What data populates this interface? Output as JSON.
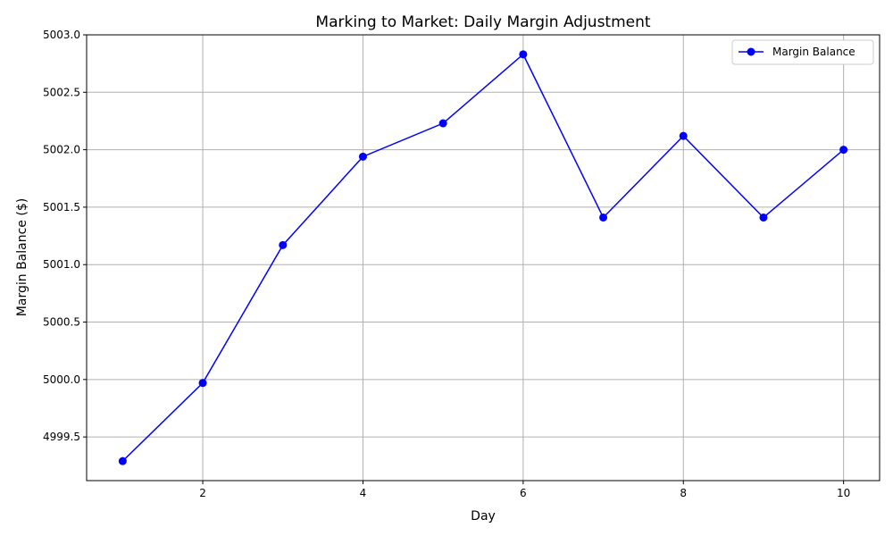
{
  "chart_data": {
    "type": "line",
    "title": "Marking to Market: Daily Margin Adjustment",
    "xlabel": "Day",
    "ylabel": "Margin Balance ($)",
    "xlim": [
      0.55,
      10.45
    ],
    "ylim": [
      4999.12,
      5003.0
    ],
    "x_ticks": [
      2,
      4,
      6,
      8,
      10
    ],
    "y_ticks": [
      4999.5,
      5000.0,
      5000.5,
      5001.0,
      5001.5,
      5002.0,
      5002.5,
      5003.0
    ],
    "y_tick_labels": [
      "4999.5",
      "5000.0",
      "5000.5",
      "5001.0",
      "5001.5",
      "5002.0",
      "5002.5",
      "5003.0"
    ],
    "grid": true,
    "legend_position": "top-right",
    "series": [
      {
        "name": "Margin Balance",
        "color": "#0000ff",
        "marker": "circle",
        "x": [
          1,
          2,
          3,
          4,
          5,
          6,
          7,
          8,
          9,
          10
        ],
        "y": [
          4999.29,
          4999.97,
          5001.17,
          5001.94,
          5002.23,
          5002.83,
          5001.41,
          5002.12,
          5001.41,
          5002.0
        ]
      }
    ]
  }
}
